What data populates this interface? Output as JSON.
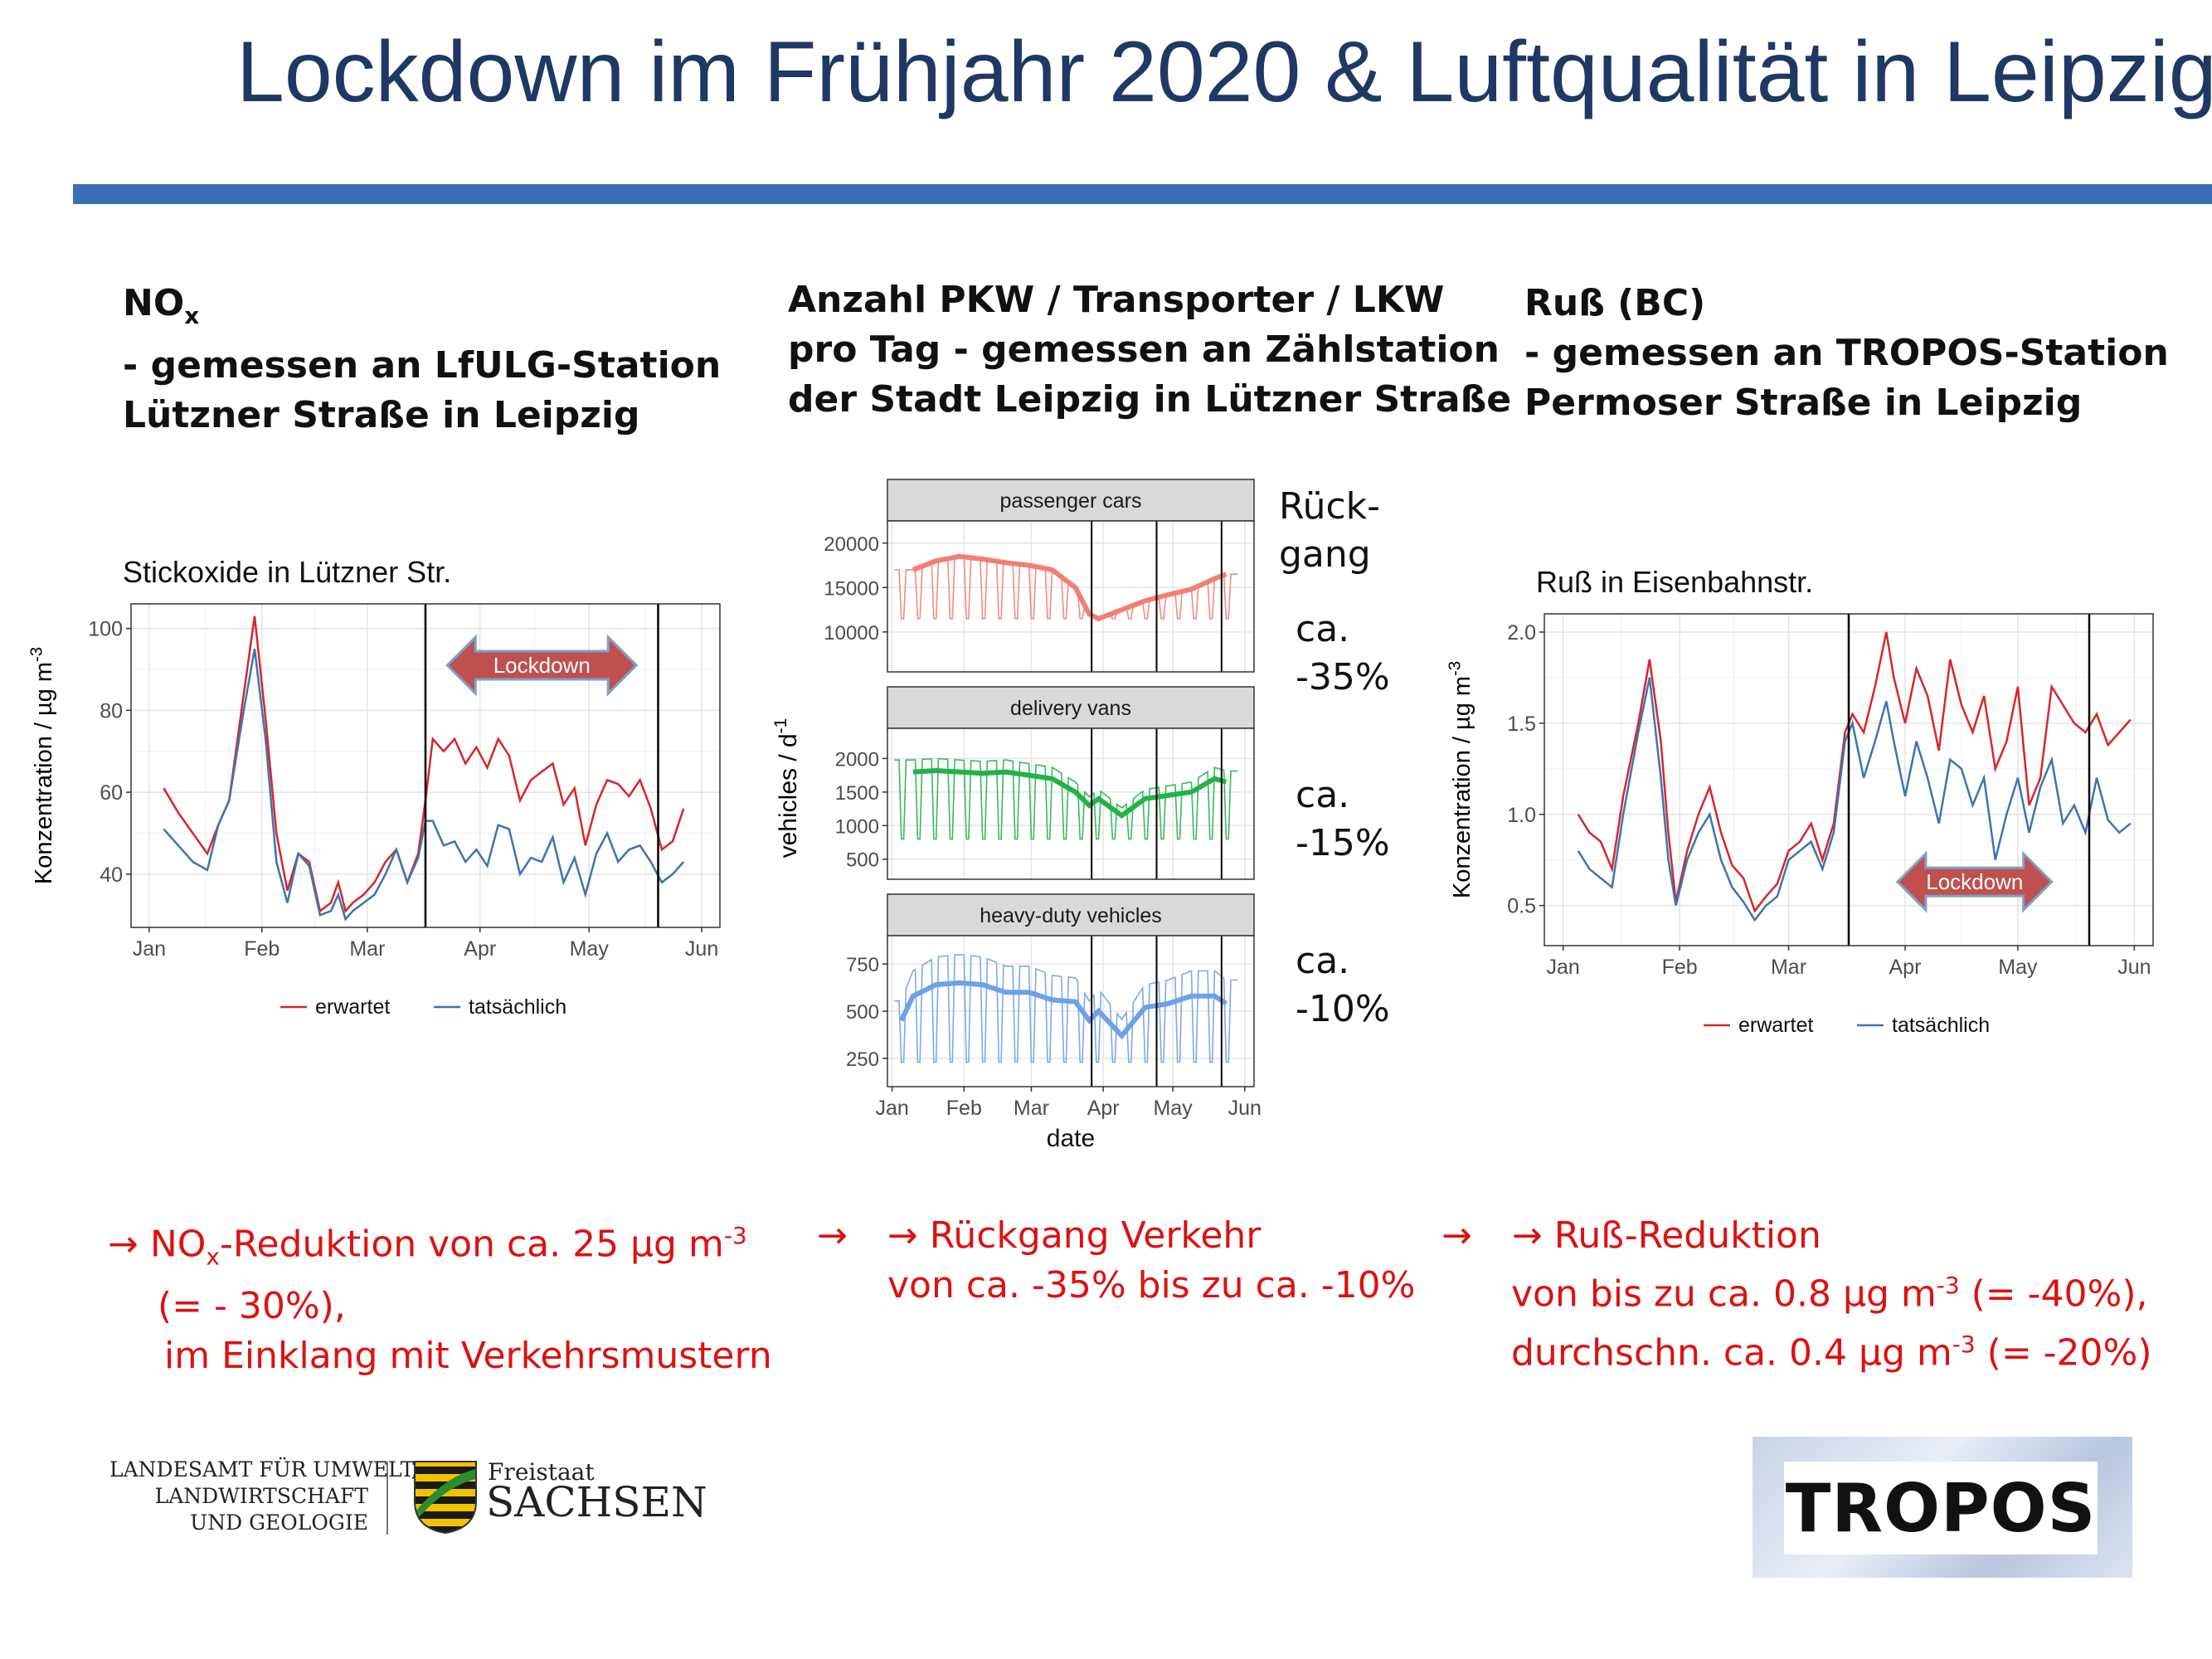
{
  "slide": {
    "title": "Lockdown im Frühjahr 2020 & Luftqualität in Leipzig"
  },
  "columns": {
    "left": {
      "heading": [
        "NOx",
        "- gemessen an LfULG-Station",
        "Lützner Straße in Leipzig"
      ],
      "heading_main": "NO",
      "heading_sub": "x",
      "conclusion": [
        "→ NOx-Reduktion von ca. 25 µg m-3",
        "(= - 30%),",
        "im Einklang mit Verkehrsmustern"
      ],
      "conclusion_parts": {
        "arrow": "→",
        "a": "NO",
        "sub": "x",
        "b": "-Reduktion von ca. 25 µg m",
        "sup": "-3"
      }
    },
    "middle": {
      "heading": [
        "Anzahl PKW / Transporter / LKW",
        "pro Tag - gemessen an Zählstation",
        "der Stadt Leipzig in Lützner Straße"
      ],
      "conclusion": [
        "→ Rückgang Verkehr",
        "von ca. -35% bis zu ca. -10%"
      ],
      "decline_label": [
        "Rück-",
        "gang"
      ],
      "decline_values": [
        [
          "ca.",
          "-35%"
        ],
        [
          "ca.",
          "-15%"
        ],
        [
          "ca.",
          "-10%"
        ]
      ]
    },
    "right": {
      "heading": [
        "Ruß (BC)",
        "- gemessen an TROPOS-Station",
        "Permoser Straße in Leipzig"
      ],
      "conclusion": [
        "→ Ruß-Reduktion",
        "von bis zu ca. 0.8 µg m-3 (= -40%),",
        "durchschn. ca. 0.4 µg m-3 (= -20%)"
      ],
      "conclusion_parts": {
        "line2a": "von bis zu ca. 0.8 µg m",
        "line2b": " (= -40%),",
        "line3a": "durchschn. ca. 0.4 µg m",
        "line3b": " (= -20%)",
        "sup": "-3"
      }
    }
  },
  "logos": {
    "lfulg": [
      "LANDESAMT FÜR UMWELT,",
      "LANDWIRTSCHAFT",
      "UND GEOLOGIE"
    ],
    "sachsen_small": "Freistaat",
    "sachsen_big": "SACHSEN",
    "tropos": "TROPOS"
  },
  "colors": {
    "expected": "#d7262b",
    "actual": "#3d74b0",
    "cars": "#f07f74",
    "vans": "#22b24c",
    "hdv": "#6fa0e8",
    "title": "#1f3864",
    "rule": "#3a6fb8",
    "conclusion": "#dd1111"
  },
  "chart_data": [
    {
      "type": "line",
      "title": "Stickoxide in Lützner Str.",
      "xlabel": "",
      "ylabel": "Konzentration / µg m-3",
      "ylabel_parts": {
        "main": "Konzentration / µg m",
        "sup": "-3"
      },
      "x_ticks": [
        "Jan",
        "Feb",
        "Mar",
        "Apr",
        "May",
        "Jun"
      ],
      "x_tick_days": [
        1,
        32,
        61,
        92,
        122,
        153
      ],
      "yticks": [
        40,
        60,
        80,
        100
      ],
      "ylim": [
        27,
        106
      ],
      "xlim": [
        -4,
        158
      ],
      "vlines_day": [
        77,
        141
      ],
      "annotation": {
        "text": "Lockdown",
        "from_day": 83,
        "to_day": 135,
        "y": 91
      },
      "legend": {
        "position": "bottom",
        "entries": [
          "erwartet",
          "tatsächlich"
        ]
      },
      "x_day": [
        5,
        9,
        13,
        17,
        20,
        23,
        27,
        30,
        33,
        36,
        39,
        42,
        45,
        48,
        51,
        53,
        55,
        57,
        60,
        63,
        66,
        69,
        72,
        75,
        77,
        79,
        82,
        85,
        88,
        91,
        94,
        97,
        100,
        103,
        106,
        109,
        112,
        115,
        118,
        121,
        124,
        127,
        130,
        133,
        136,
        139,
        142,
        145,
        148
      ],
      "series": [
        {
          "name": "erwartet",
          "values": [
            61,
            55,
            50,
            45,
            52,
            58,
            84,
            103,
            78,
            50,
            36,
            45,
            43,
            31,
            33,
            38,
            31,
            33,
            35,
            38,
            43,
            46,
            38,
            45,
            58,
            73,
            70,
            73,
            67,
            71,
            66,
            73,
            69,
            58,
            63,
            65,
            67,
            57,
            61,
            47,
            57,
            63,
            62,
            59,
            63,
            56,
            46,
            48,
            56
          ]
        },
        {
          "name": "tatsächlich",
          "values": [
            51,
            47,
            43,
            41,
            52,
            58,
            80,
            95,
            73,
            43,
            33,
            45,
            42,
            30,
            31,
            35,
            29,
            31,
            33,
            35,
            40,
            46,
            38,
            44,
            53,
            53,
            47,
            48,
            43,
            46,
            42,
            52,
            51,
            40,
            44,
            43,
            49,
            38,
            44,
            35,
            45,
            50,
            43,
            46,
            47,
            43,
            38,
            40,
            43
          ]
        }
      ]
    },
    {
      "type": "line",
      "title": "",
      "xlabel": "date",
      "ylabel": "vehicles / d-1",
      "ylabel_parts": {
        "main": "vehicles / d",
        "sup": "-1"
      },
      "x_ticks": [
        "Jan",
        "Feb",
        "Mar",
        "Apr",
        "May",
        "Jun"
      ],
      "x_tick_days": [
        1,
        32,
        61,
        92,
        122,
        153
      ],
      "xlim": [
        -1,
        157
      ],
      "vlines_day": [
        87,
        115,
        143
      ],
      "facets": [
        {
          "name": "passenger cars",
          "ylim": [
            5500,
            22500
          ],
          "yticks": [
            10000,
            15000,
            20000
          ],
          "x_day": [
            10,
            20,
            30,
            40,
            50,
            60,
            70,
            80,
            86,
            90,
            100,
            110,
            120,
            130,
            140,
            145
          ],
          "trend": [
            17000,
            18000,
            18500,
            18200,
            17800,
            17500,
            17000,
            15000,
            12000,
            11500,
            12500,
            13500,
            14200,
            14800,
            16000,
            16500
          ],
          "daily_weekday": 18500,
          "daily_weekend": 11500
        },
        {
          "name": "delivery vans",
          "ylim": [
            200,
            2450
          ],
          "yticks": [
            500,
            1000,
            1500,
            2000
          ],
          "x_day": [
            10,
            20,
            30,
            40,
            50,
            60,
            70,
            80,
            86,
            90,
            100,
            110,
            120,
            130,
            140,
            145
          ],
          "trend": [
            1800,
            1820,
            1800,
            1780,
            1800,
            1750,
            1700,
            1500,
            1300,
            1400,
            1150,
            1400,
            1450,
            1500,
            1700,
            1650
          ],
          "daily_weekday": 2000,
          "daily_weekend": 800
        },
        {
          "name": "heavy-duty vehicles",
          "ylim": [
            100,
            900
          ],
          "yticks": [
            250,
            500,
            750
          ],
          "x_day": [
            5,
            10,
            20,
            30,
            40,
            50,
            60,
            70,
            80,
            86,
            90,
            100,
            110,
            120,
            130,
            140,
            145
          ],
          "trend": [
            450,
            580,
            640,
            650,
            640,
            600,
            600,
            560,
            550,
            450,
            500,
            370,
            520,
            540,
            580,
            580,
            540
          ],
          "daily_weekday": 800,
          "daily_weekend": 230
        }
      ]
    },
    {
      "type": "line",
      "title": "Ruß in Eisenbahnstr.",
      "xlabel": "",
      "ylabel": "Konzentration / µg m-3",
      "ylabel_parts": {
        "main": "Konzentration / µg m",
        "sup": "-3"
      },
      "x_ticks": [
        "Jan",
        "Feb",
        "Mar",
        "Apr",
        "May",
        "Jun"
      ],
      "x_tick_days": [
        1,
        32,
        61,
        92,
        122,
        153
      ],
      "yticks": [
        0.5,
        1.0,
        1.5,
        2.0
      ],
      "ylim": [
        0.28,
        2.1
      ],
      "xlim": [
        -4,
        158
      ],
      "vlines_day": [
        77,
        141
      ],
      "annotation": {
        "text": "Lockdown",
        "from_day": 90,
        "to_day": 131,
        "y": 0.63
      },
      "legend": {
        "position": "bottom",
        "entries": [
          "erwartet",
          "tatsächlich"
        ]
      },
      "x_day": [
        5,
        8,
        11,
        14,
        17,
        21,
        24,
        27,
        29,
        31,
        34,
        37,
        40,
        43,
        46,
        49,
        52,
        55,
        58,
        61,
        64,
        67,
        70,
        73,
        76,
        78,
        81,
        84,
        87,
        89,
        92,
        95,
        98,
        101,
        104,
        107,
        110,
        113,
        116,
        119,
        122,
        125,
        128,
        131,
        134,
        137,
        140,
        143,
        146,
        149,
        152
      ],
      "series": [
        {
          "name": "erwartet",
          "values": [
            1.0,
            0.9,
            0.85,
            0.7,
            1.1,
            1.5,
            1.85,
            1.4,
            0.9,
            0.52,
            0.8,
            1.0,
            1.15,
            0.9,
            0.72,
            0.65,
            0.47,
            0.55,
            0.62,
            0.8,
            0.85,
            0.95,
            0.75,
            0.95,
            1.45,
            1.55,
            1.45,
            1.7,
            2.0,
            1.75,
            1.5,
            1.8,
            1.65,
            1.35,
            1.85,
            1.6,
            1.45,
            1.65,
            1.25,
            1.4,
            1.7,
            1.05,
            1.2,
            1.7,
            1.6,
            1.5,
            1.45,
            1.55,
            1.38,
            1.45,
            1.52
          ]
        },
        {
          "name": "tatsächlich",
          "values": [
            0.8,
            0.7,
            0.65,
            0.6,
            1.0,
            1.45,
            1.75,
            1.2,
            0.75,
            0.5,
            0.75,
            0.9,
            1.0,
            0.75,
            0.6,
            0.52,
            0.42,
            0.5,
            0.55,
            0.75,
            0.8,
            0.85,
            0.7,
            0.9,
            1.4,
            1.5,
            1.2,
            1.4,
            1.62,
            1.4,
            1.1,
            1.4,
            1.2,
            0.95,
            1.3,
            1.25,
            1.05,
            1.2,
            0.75,
            1.0,
            1.2,
            0.9,
            1.15,
            1.3,
            0.95,
            1.05,
            0.9,
            1.2,
            0.97,
            0.9,
            0.95
          ]
        }
      ]
    }
  ]
}
